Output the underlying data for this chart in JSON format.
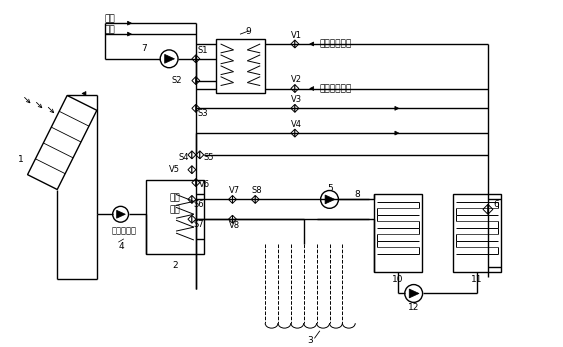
{
  "bg_color": "#ffffff",
  "fig_width": 5.63,
  "fig_height": 3.47,
  "dpi": 100,
  "labels": {
    "supply_water": "供水",
    "return_water": "回水",
    "city_supply": "城市热网供水",
    "city_return": "城市热网回水",
    "storage_tank_line1": "蓄热",
    "storage_tank_line2": "水箱",
    "collector_pump": "集热循环泵",
    "l1": "1",
    "l2": "2",
    "l3": "3",
    "l4": "4",
    "l5": "5",
    "l6": "6",
    "l7": "7",
    "l8": "8",
    "l9": "9",
    "l10": "10",
    "l11": "11",
    "l12": "12",
    "s1": "S1",
    "s2": "S2",
    "s3": "S3",
    "s4": "S4",
    "s5": "S5",
    "s6": "S6",
    "s7": "S7",
    "s8": "S8",
    "v1": "V1",
    "v2": "V2",
    "v3": "V3",
    "v4": "V4",
    "v5": "V5",
    "v6": "V6",
    "v7": "V7",
    "v8": "V8"
  },
  "lc": "#000000",
  "lw": 1.0,
  "fs": 6.5
}
